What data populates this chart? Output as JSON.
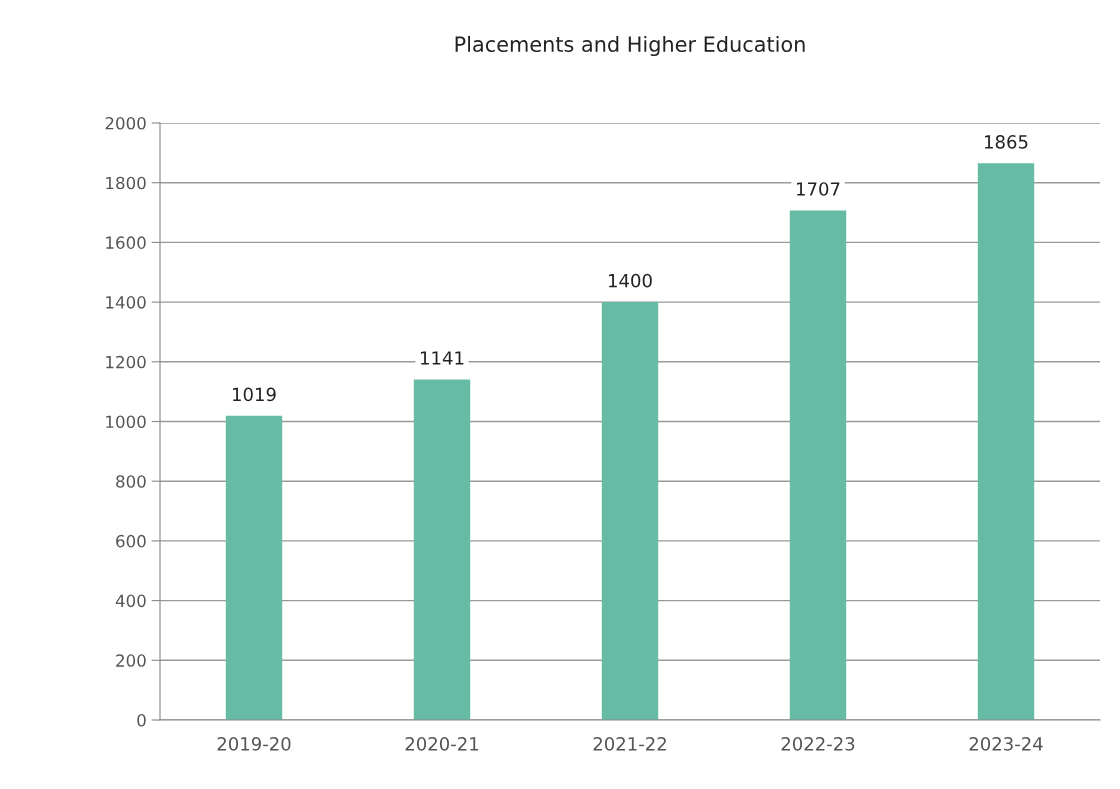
{
  "chart_data": {
    "type": "bar",
    "title": "Placements and Higher Education",
    "categories": [
      "2019-20",
      "2020-21",
      "2021-22",
      "2022-23",
      "2023-24"
    ],
    "values": [
      1019,
      1141,
      1400,
      1707,
      1865
    ],
    "color": "#66bba4",
    "ylim": [
      0,
      2000
    ],
    "yticks": [
      0,
      200,
      400,
      600,
      800,
      1000,
      1200,
      1400,
      1600,
      1800,
      2000
    ],
    "grid": "y",
    "data_labels": true,
    "legend": false
  }
}
